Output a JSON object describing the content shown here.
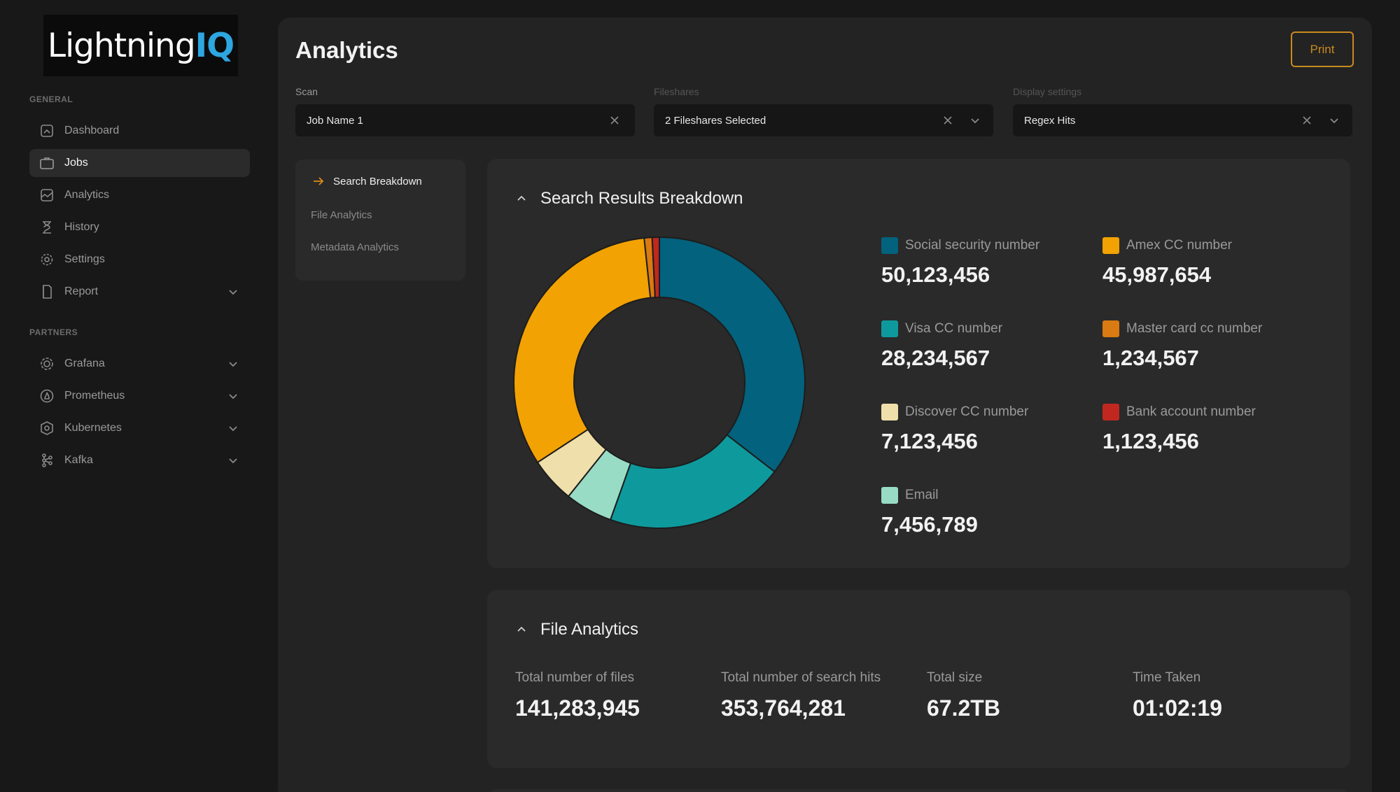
{
  "brand": {
    "name_main": "Lightning",
    "name_accent": "IQ"
  },
  "sidebar": {
    "general_label": "GENERAL",
    "general_items": [
      {
        "label": "Dashboard",
        "icon": "dashboard-icon",
        "active": false
      },
      {
        "label": "Jobs",
        "icon": "briefcase-icon",
        "active": true
      },
      {
        "label": "Analytics",
        "icon": "analytics-icon",
        "active": false
      },
      {
        "label": "History",
        "icon": "hourglass-icon",
        "active": false
      },
      {
        "label": "Settings",
        "icon": "gear-icon",
        "active": false
      },
      {
        "label": "Report",
        "icon": "document-icon",
        "active": false,
        "expandable": true
      }
    ],
    "partners_label": "PARTNERS",
    "partner_items": [
      {
        "label": "Grafana",
        "icon": "grafana-icon"
      },
      {
        "label": "Prometheus",
        "icon": "prometheus-icon"
      },
      {
        "label": "Kubernetes",
        "icon": "kubernetes-icon"
      },
      {
        "label": "Kafka",
        "icon": "kafka-icon"
      }
    ]
  },
  "header": {
    "title": "Analytics",
    "print_label": "Print"
  },
  "filters": {
    "scan": {
      "label": "Scan",
      "value": "Job Name 1"
    },
    "fileshares": {
      "label": "Fileshares",
      "value": "2 Fileshares Selected"
    },
    "display": {
      "label": "Display settings",
      "value": "Regex Hits"
    }
  },
  "subnav": {
    "items": [
      {
        "label": "Search Breakdown",
        "active": true
      },
      {
        "label": "File Analytics",
        "active": false
      },
      {
        "label": "Metadata Analytics",
        "active": false
      }
    ]
  },
  "search_results": {
    "title": "Search Results Breakdown"
  },
  "chart_data": {
    "type": "pie",
    "variant": "donut",
    "slices": [
      {
        "label": "Social security number",
        "value": 50123456,
        "display": "50,123,456",
        "color": "#03627d"
      },
      {
        "label": "Visa CC number",
        "value": 28234567,
        "display": "28,234,567",
        "color": "#0e9a9d"
      },
      {
        "label": "Email",
        "value": 7456789,
        "display": "7,456,789",
        "color": "#98dcc6"
      },
      {
        "label": "Discover CC number",
        "value": 7123456,
        "display": "7,123,456",
        "color": "#efdfaa"
      },
      {
        "label": "Amex CC number",
        "value": 45987654,
        "display": "45,987,654",
        "color": "#f2a202"
      },
      {
        "label": "Master card cc number",
        "value": 1234567,
        "display": "1,234,567",
        "color": "#d97a12"
      },
      {
        "label": "Bank account number",
        "value": 1123456,
        "display": "1,123,456",
        "color": "#c0281f"
      }
    ],
    "legend_placement": "right"
  },
  "file_analytics": {
    "title": "File Analytics",
    "stats": [
      {
        "label": "Total number of files",
        "value": "141,283,945"
      },
      {
        "label": "Total number of search hits",
        "value": "353,764,281"
      },
      {
        "label": "Total size",
        "value": "67.2TB"
      },
      {
        "label": "Time Taken",
        "value": "01:02:19"
      }
    ]
  }
}
